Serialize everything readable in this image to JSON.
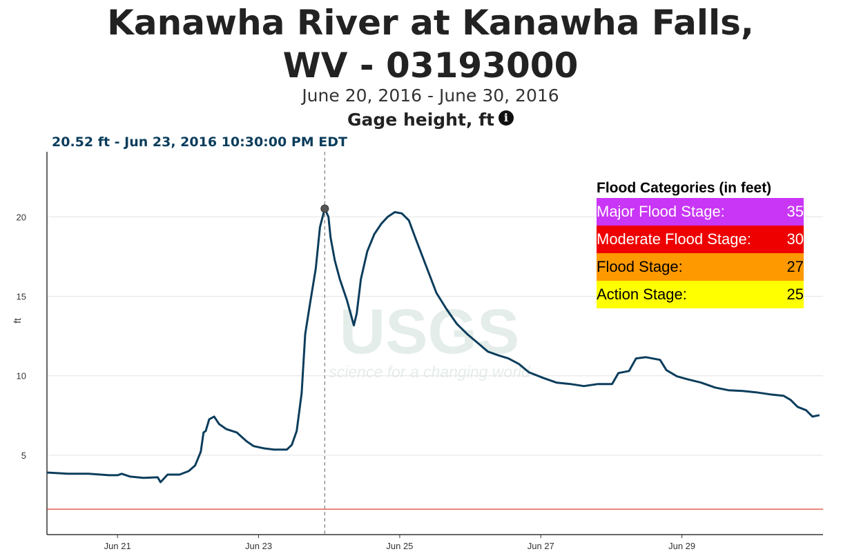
{
  "chart_data": {
    "type": "line",
    "title": "Kanawha River at Kanawha Falls, WV - 03193000",
    "subtitle": "June 20, 2016 - June 30, 2016",
    "parameter": "Gage height, ft",
    "y_label": "ft",
    "hover_label": "20.52 ft - Jun 23, 2016 10:30:00 PM EDT",
    "highlight": {
      "x": 23.9375,
      "y": 20.52
    },
    "watermark": {
      "logo": "USGS",
      "tagline": "science for a changing world"
    },
    "color": "#0b3d5c",
    "x": [
      20.0,
      20.3,
      20.59,
      20.88,
      21.0,
      21.06,
      21.18,
      21.37,
      21.57,
      21.61,
      21.71,
      21.88,
      22.01,
      22.1,
      22.18,
      22.22,
      22.25,
      22.3,
      22.37,
      22.44,
      22.54,
      22.69,
      22.83,
      22.93,
      23.08,
      23.22,
      23.4,
      23.47,
      23.54,
      23.61,
      23.66,
      23.73,
      23.81,
      23.87,
      23.9375,
      23.99,
      24.02,
      24.08,
      24.15,
      24.25,
      24.35,
      24.39,
      24.45,
      24.54,
      24.64,
      24.74,
      24.83,
      24.93,
      25.03,
      25.13,
      25.22,
      25.37,
      25.52,
      25.66,
      25.81,
      25.96,
      26.1,
      26.25,
      26.39,
      26.54,
      26.69,
      26.83,
      27.03,
      27.22,
      27.42,
      27.61,
      27.81,
      28.01,
      28.1,
      28.25,
      28.35,
      28.49,
      28.69,
      28.78,
      28.93,
      29.08,
      29.27,
      29.47,
      29.66,
      29.86,
      30.05,
      30.25,
      30.44,
      30.54,
      30.64,
      30.76,
      30.85,
      30.95
    ],
    "values": [
      3.91,
      3.83,
      3.83,
      3.74,
      3.74,
      3.83,
      3.65,
      3.57,
      3.61,
      3.3,
      3.78,
      3.78,
      4.0,
      4.35,
      5.22,
      6.43,
      6.52,
      7.26,
      7.43,
      6.96,
      6.65,
      6.43,
      5.87,
      5.57,
      5.43,
      5.35,
      5.35,
      5.65,
      6.52,
      8.91,
      12.61,
      14.57,
      16.74,
      19.35,
      20.52,
      20.0,
      18.7,
      17.26,
      16.09,
      14.78,
      13.17,
      13.91,
      16.09,
      17.83,
      18.91,
      19.57,
      20.0,
      20.3,
      20.22,
      19.78,
      18.7,
      16.96,
      15.22,
      14.22,
      13.26,
      12.61,
      12.09,
      11.52,
      11.3,
      11.09,
      10.74,
      10.22,
      9.87,
      9.57,
      9.48,
      9.35,
      9.48,
      9.48,
      10.17,
      10.3,
      11.09,
      11.17,
      11.0,
      10.35,
      9.96,
      9.78,
      9.57,
      9.26,
      9.09,
      9.04,
      8.96,
      8.83,
      8.74,
      8.48,
      8.04,
      7.83,
      7.43,
      7.52
    ],
    "hline": {
      "value": 1.6,
      "color": "#d9432f"
    },
    "xlim": [
      20,
      31
    ],
    "xticks": [
      {
        "value": 21,
        "label": "Jun 21"
      },
      {
        "value": 23,
        "label": "Jun 23"
      },
      {
        "value": 25,
        "label": "Jun 25"
      },
      {
        "value": 27,
        "label": "Jun 27"
      },
      {
        "value": 29,
        "label": "Jun 29"
      }
    ],
    "ylim": [
      0,
      24.1
    ],
    "yticks": [
      5,
      10,
      15,
      20
    ],
    "grid": true,
    "flood_categories": {
      "title": "Flood Categories (in feet)",
      "rows": [
        {
          "name": "Major Flood Stage:",
          "value": 35,
          "color": "#c936f5"
        },
        {
          "name": "Moderate Flood Stage:",
          "value": 30,
          "color": "#ee0000"
        },
        {
          "name": "Flood Stage:",
          "value": 27,
          "color": "#ff9900"
        },
        {
          "name": "Action Stage:",
          "value": 25,
          "color": "#ffff00"
        }
      ]
    }
  }
}
